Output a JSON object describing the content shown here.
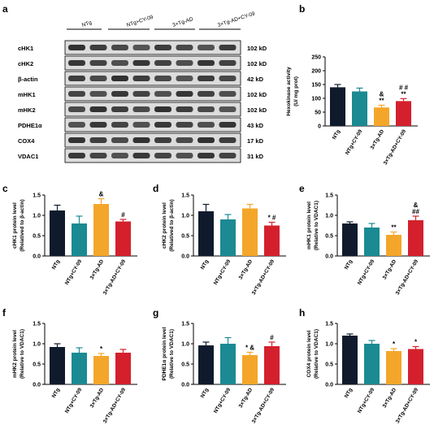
{
  "colors": {
    "NTg": "#0f1b2d",
    "NTg+CY-09": "#1b8a93",
    "3×Tg-AD": "#f4a62a",
    "3×Tg-AD+CY-09": "#d4202d"
  },
  "groups": [
    "NTg",
    "NTg+CY-09",
    "3×Tg-AD",
    "3×Tg-AD+CY-09"
  ],
  "western_blot": {
    "panel_letter": "a",
    "bands": [
      {
        "label": "cHK1",
        "size": "102 kD"
      },
      {
        "label": "cHK2",
        "size": "102 kD"
      },
      {
        "label": "β-actin",
        "size": "42 kD"
      },
      {
        "label": "mHK1",
        "size": "102 kD"
      },
      {
        "label": "mHK2",
        "size": "102 kD"
      },
      {
        "label": "PDHE1α",
        "size": "43 kD"
      },
      {
        "label": "COX4",
        "size": "17 kD"
      },
      {
        "label": "VDAC1",
        "size": "31 kD"
      }
    ]
  },
  "chart_data": [
    {
      "panel": "b",
      "type": "bar",
      "categories": [
        "NTg",
        "NTg+CY-09",
        "3×Tg-AD",
        "3×Tg-AD+CY-09"
      ],
      "values": [
        140,
        125,
        67,
        90
      ],
      "errors": [
        10,
        12,
        8,
        9
      ],
      "ylabel": [
        "Hexokinase activity",
        "(U/ mg prot)"
      ],
      "ylim": [
        0,
        250
      ],
      "yticks": [
        "0",
        "50",
        "100",
        "150",
        "200",
        "250"
      ],
      "annotations": [
        "",
        "",
        "& / **",
        "# # / **"
      ]
    },
    {
      "panel": "c",
      "type": "bar",
      "categories": [
        "NTg",
        "NTg+CY-09",
        "3×Tg-AD",
        "3×Tg-AD+CY-09"
      ],
      "values": [
        1.12,
        0.8,
        1.28,
        0.85
      ],
      "errors": [
        0.13,
        0.18,
        0.13,
        0.05
      ],
      "ylabel": [
        "cHK1 protein level",
        "(Relatived to β-actin)"
      ],
      "ylim": [
        0,
        1.5
      ],
      "yticks": [
        "0.0",
        "0.5",
        "1.0",
        "1.5"
      ],
      "annotations": [
        "",
        "",
        "&",
        "#"
      ]
    },
    {
      "panel": "d",
      "type": "bar",
      "categories": [
        "NTg",
        "NTg+CY-09",
        "3×Tg-AD",
        "3×Tg-AD+CY-09"
      ],
      "values": [
        1.1,
        0.9,
        1.17,
        0.75
      ],
      "errors": [
        0.17,
        0.12,
        0.1,
        0.08
      ],
      "ylabel": [
        "cHK2 protein level",
        "(Relatived to β-actin)"
      ],
      "ylim": [
        0,
        1.5
      ],
      "yticks": [
        "0.0",
        "0.5",
        "1.0",
        "1.5"
      ],
      "annotations": [
        "",
        "",
        "",
        "* #"
      ]
    },
    {
      "panel": "e",
      "type": "bar",
      "categories": [
        "NTg",
        "NTg+CY-09",
        "3×Tg-AD",
        "3×Tg-AD+CY-09"
      ],
      "values": [
        0.8,
        0.7,
        0.52,
        0.88
      ],
      "errors": [
        0.04,
        0.1,
        0.07,
        0.1
      ],
      "ylabel": [
        "mHK1 protein level",
        "(Relative to VDAC1)"
      ],
      "ylim": [
        0,
        1.5
      ],
      "yticks": [
        "0.0",
        "0.5",
        "1.0",
        "1.5"
      ],
      "annotations": [
        "",
        "",
        "**",
        "& / ##"
      ]
    },
    {
      "panel": "f",
      "type": "bar",
      "categories": [
        "NTg",
        "NTg+CY-09",
        "3×Tg-AD",
        "3×Tg-AD+CY-09"
      ],
      "values": [
        0.92,
        0.78,
        0.7,
        0.78
      ],
      "errors": [
        0.08,
        0.12,
        0.06,
        0.08
      ],
      "ylabel": [
        "mHK2 protein level",
        "(Relative to VDAC1)"
      ],
      "ylim": [
        0,
        1.5
      ],
      "yticks": [
        "0.0",
        "0.5",
        "1.0",
        "1.5"
      ],
      "annotations": [
        "",
        "",
        "*",
        ""
      ]
    },
    {
      "panel": "g",
      "type": "bar",
      "categories": [
        "NTg",
        "NTg+CY-09",
        "3×Tg-AD",
        "3×Tg-AD+CY-09"
      ],
      "values": [
        0.96,
        1.0,
        0.72,
        0.94
      ],
      "errors": [
        0.08,
        0.15,
        0.07,
        0.1
      ],
      "ylabel": [
        "PDHE1α protein level",
        "(Relative to VDAC1)"
      ],
      "ylim": [
        0,
        1.5
      ],
      "yticks": [
        "0.0",
        "0.5",
        "1.0",
        "1.5"
      ],
      "annotations": [
        "",
        "",
        "* &",
        "#"
      ]
    },
    {
      "panel": "h",
      "type": "bar",
      "categories": [
        "NTg",
        "NTg+CY-09",
        "3×Tg-AD",
        "3×Tg-AD+CY-09"
      ],
      "values": [
        1.2,
        1.0,
        0.82,
        0.87
      ],
      "errors": [
        0.04,
        0.08,
        0.06,
        0.06
      ],
      "ylabel": [
        "COX4 protein level",
        "(Relative to VDAC1)"
      ],
      "ylim": [
        0,
        1.5
      ],
      "yticks": [
        "0.0",
        "0.5",
        "1.0",
        "1.5"
      ],
      "annotations": [
        "",
        "",
        "*",
        "*"
      ]
    }
  ]
}
